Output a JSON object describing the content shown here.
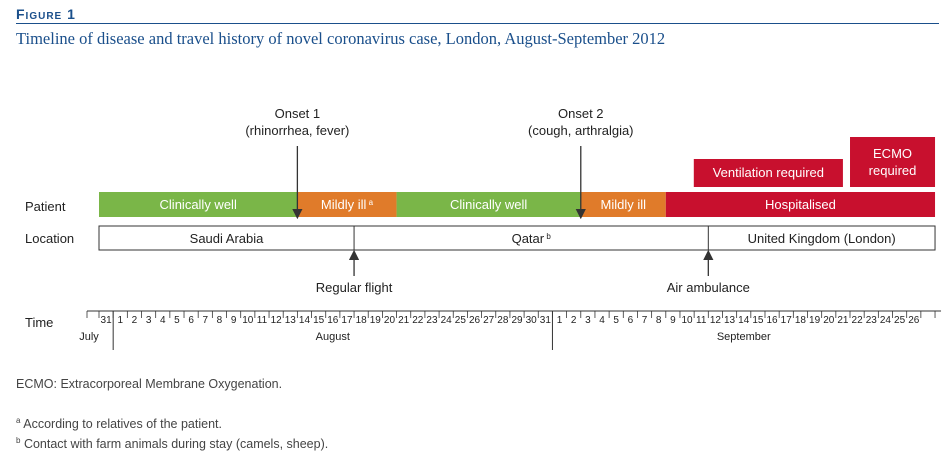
{
  "figure": {
    "label": "Figure 1",
    "title": "Timeline of disease and travel history of novel coronavirus case, London, August-September 2012"
  },
  "rows": {
    "patient": "Patient",
    "location": "Location",
    "time": "Time"
  },
  "onsets": [
    {
      "title": "Onset  1",
      "detail": "(rhinorrhea, fever)",
      "day": 14
    },
    {
      "title": "Onset  2",
      "detail": "(cough, arthralgia)",
      "day": 34
    }
  ],
  "patient_segments": [
    {
      "label": "Clinically well",
      "sup": "",
      "start": 0,
      "end": 14,
      "color": "#7ab648"
    },
    {
      "label": "Mildly ill",
      "sup": "a",
      "start": 14,
      "end": 21,
      "color": "#e07b2a"
    },
    {
      "label": "Clinically well",
      "sup": "",
      "start": 21,
      "end": 34,
      "color": "#7ab648"
    },
    {
      "label": "Mildly ill",
      "sup": "",
      "start": 34,
      "end": 40,
      "color": "#e07b2a"
    },
    {
      "label": "Hospitalised",
      "sup": "",
      "start": 40,
      "end": 59,
      "color": "#c8102e"
    }
  ],
  "hospital_extras": [
    {
      "label": "Ventilation required",
      "start": 40,
      "end": 52.5,
      "color": "#c8102e"
    },
    {
      "label": "ECMO",
      "label2": "required",
      "start": 53,
      "end": 59,
      "color": "#c8102e"
    }
  ],
  "location_segments": [
    {
      "label": "Saudi Arabia",
      "sup": "",
      "start": 0,
      "end": 18
    },
    {
      "label": "Qatar",
      "sup": "b",
      "start": 18,
      "end": 43
    },
    {
      "label": "United Kingdom (London)",
      "sup": "",
      "start": 43,
      "end": 59
    }
  ],
  "flights": [
    {
      "label": "Regular flight",
      "day": 18
    },
    {
      "label": "Air ambulance",
      "day": 43
    }
  ],
  "timeline": {
    "days": [
      31,
      1,
      2,
      3,
      4,
      5,
      6,
      7,
      8,
      9,
      10,
      11,
      12,
      13,
      14,
      15,
      16,
      17,
      18,
      19,
      20,
      21,
      22,
      23,
      24,
      25,
      26,
      27,
      28,
      29,
      30,
      31,
      1,
      2,
      3,
      4,
      5,
      6,
      7,
      8,
      9,
      10,
      11,
      12,
      13,
      14,
      15,
      16,
      17,
      18,
      19,
      20,
      21,
      22,
      23,
      24,
      25,
      26
    ],
    "months": [
      {
        "label": "July",
        "center": 0
      },
      {
        "label": "August",
        "center": 16.5
      },
      {
        "label": "September",
        "center": 45.5
      }
    ],
    "month_dividers": [
      1,
      32
    ]
  },
  "footnotes": {
    "ecmo": "ECMO: Extracorporeal Membrane Oxygenation.",
    "a_mark": "a",
    "a_text": "According to relatives of the patient.",
    "b_mark": "b",
    "b_text": "Contact with farm animals during stay (camels, sheep)."
  },
  "colors": {
    "accent": "#1a4f8b",
    "well": "#7ab648",
    "mild": "#e07b2a",
    "hosp": "#c8102e"
  }
}
